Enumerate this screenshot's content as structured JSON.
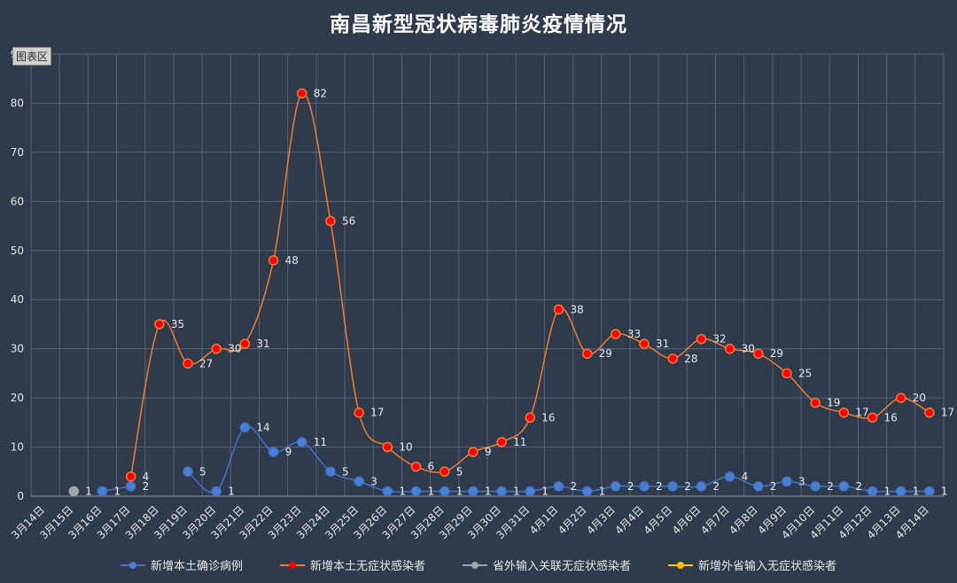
{
  "title": "南昌新型冠状病毒肺炎疫情情况",
  "plot_area_label": "图表区",
  "chart_data": {
    "type": "line",
    "categories": [
      "3月14日",
      "3月15日",
      "3月16日",
      "3月17日",
      "3月18日",
      "3月19日",
      "3月20日",
      "3月21日",
      "3月22日",
      "3月23日",
      "3月24日",
      "3月25日",
      "3月26日",
      "3月27日",
      "3月28日",
      "3月29日",
      "3月30日",
      "3月31日",
      "4月1日",
      "4月2日",
      "4月3日",
      "4月4日",
      "4月5日",
      "4月6日",
      "4月7日",
      "4月8日",
      "4月9日",
      "4月10日",
      "4月11日",
      "4月12日",
      "4月13日",
      "4月14日"
    ],
    "ylim": [
      0,
      90
    ],
    "yticks": [
      0,
      10,
      20,
      30,
      40,
      50,
      60,
      70,
      80,
      90
    ],
    "grid": true,
    "legend_position": "bottom",
    "series": [
      {
        "name": "新增本土确诊病例",
        "color": "#4472c4",
        "marker_color": "#4a7fd6",
        "values": [
          null,
          null,
          1,
          2,
          null,
          5,
          1,
          14,
          9,
          11,
          5,
          3,
          1,
          1,
          1,
          1,
          1,
          1,
          2,
          1,
          2,
          2,
          2,
          2,
          4,
          2,
          3,
          2,
          2,
          1,
          1,
          1
        ]
      },
      {
        "name": "新增本土无症状感染者",
        "color": "#ed7d31",
        "marker_color": "#ff0000",
        "values": [
          null,
          null,
          null,
          4,
          35,
          27,
          30,
          31,
          48,
          82,
          56,
          17,
          10,
          6,
          5,
          9,
          11,
          16,
          38,
          29,
          33,
          31,
          28,
          32,
          30,
          29,
          25,
          19,
          17,
          16,
          20,
          17
        ]
      },
      {
        "name": "省外输入关联无症状感染者",
        "color": "#a5a5a5",
        "marker_color": "#a5a5a5",
        "values": [
          null,
          1,
          null,
          null,
          null,
          null,
          null,
          null,
          null,
          null,
          null,
          null,
          null,
          null,
          null,
          null,
          null,
          null,
          null,
          null,
          null,
          null,
          null,
          null,
          null,
          null,
          null,
          null,
          null,
          null,
          null,
          null
        ]
      },
      {
        "name": "新增外省输入无症状感染者",
        "color": "#ffc000",
        "marker_color": "#ffc000",
        "values": [
          null,
          null,
          null,
          null,
          null,
          null,
          null,
          null,
          null,
          null,
          null,
          null,
          null,
          null,
          null,
          null,
          null,
          null,
          null,
          null,
          null,
          null,
          null,
          null,
          null,
          null,
          null,
          null,
          null,
          null,
          null,
          null
        ]
      }
    ]
  }
}
